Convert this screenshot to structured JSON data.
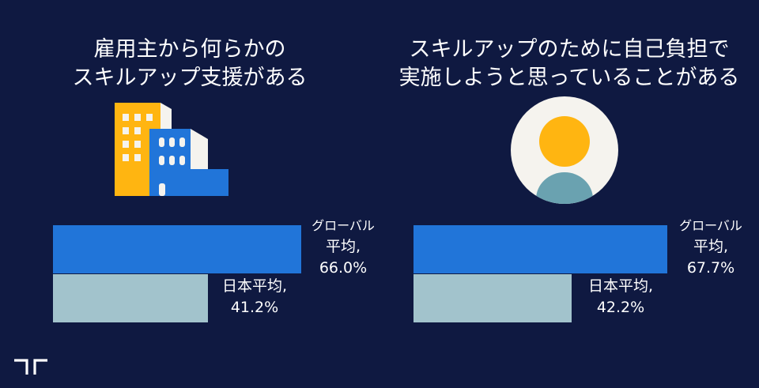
{
  "colors": {
    "background": "#0f1941",
    "global_bar": "#2175d9",
    "japan_bar": "#a2c3cc",
    "building_yellow": "#ffb511",
    "building_blue": "#2175d9",
    "person_circle": "#f5f3ee",
    "person_head": "#ffb511",
    "person_body": "#6aa2b0"
  },
  "icons": {
    "left": "building-icon",
    "right": "person-icon",
    "logo": "randstad-logo-icon"
  },
  "chart_data": [
    {
      "type": "bar",
      "orientation": "horizontal",
      "title_lines": [
        "雇用主から何らかの",
        "スキルアップ支援がある"
      ],
      "categories": [
        "グローバル平均",
        "日本平均"
      ],
      "values": [
        66.0,
        41.2
      ],
      "xlim": [
        0,
        66
      ],
      "data_labels": [
        {
          "lines": [
            "グローバル",
            "平均,",
            "66.0%"
          ]
        },
        {
          "lines": [
            "日本平均,",
            "41.2%"
          ]
        }
      ]
    },
    {
      "type": "bar",
      "orientation": "horizontal",
      "title_lines": [
        "スキルアップのために自己負担で",
        "実施しようと思っていることがある"
      ],
      "categories": [
        "グローバル平均",
        "日本平均"
      ],
      "values": [
        67.7,
        42.2
      ],
      "xlim": [
        0,
        67.7
      ],
      "data_labels": [
        {
          "lines": [
            "グローバル",
            "平均,",
            "67.7%"
          ]
        },
        {
          "lines": [
            "日本平均,",
            "42.2%"
          ]
        }
      ]
    }
  ]
}
